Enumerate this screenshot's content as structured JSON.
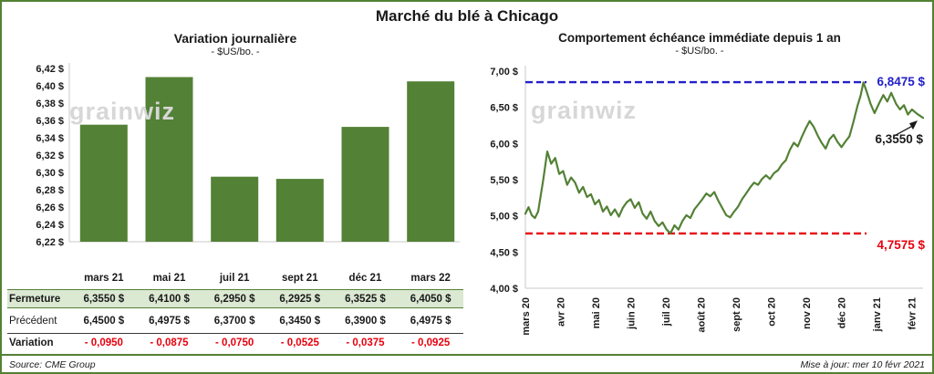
{
  "page": {
    "title": "Marché du blé à Chicago",
    "source": "Source: CME Group",
    "updated": "Mise à jour: mer 10 févr 2021"
  },
  "watermark": "grainwiz",
  "colors": {
    "green": "#538135",
    "light_green_row": "#dbe8d2",
    "blue": "#2320c8",
    "red": "#e8000d",
    "watermark_gray": "#d7d7d7"
  },
  "chart_data": [
    {
      "type": "bar",
      "title": "Variation journalière",
      "subtitle": "- $US/bo. -",
      "categories": [
        "mars 21",
        "mai 21",
        "juil 21",
        "sept 21",
        "déc 21",
        "mars 22"
      ],
      "values": [
        6.355,
        6.41,
        6.295,
        6.2925,
        6.3525,
        6.405
      ],
      "ylim": [
        6.22,
        6.42
      ],
      "yticks": [
        6.42,
        6.4,
        6.38,
        6.36,
        6.34,
        6.32,
        6.3,
        6.28,
        6.26,
        6.24,
        6.22
      ],
      "unit": "$",
      "bar_color": "#538135",
      "grid": false,
      "legend": false
    },
    {
      "type": "line",
      "title": "Comportement échéance immédiate depuis 1 an",
      "subtitle": "- $US/bo. -",
      "x_labels": [
        "mars 20",
        "avr 20",
        "mai 20",
        "juin 20",
        "juil 20",
        "août 20",
        "sept 20",
        "oct 20",
        "nov 20",
        "déc 20",
        "janv 21",
        "févr 21"
      ],
      "ylim": [
        4.0,
        7.0
      ],
      "yticks": [
        7.0,
        6.5,
        6.0,
        5.5,
        5.0,
        4.5,
        4.0
      ],
      "unit": "$",
      "line_color": "#538135",
      "grid": false,
      "legend": false,
      "annotations": {
        "high": {
          "value": 6.8475,
          "label": "6,8475 $",
          "color": "#2320c8",
          "style": "dashed"
        },
        "low": {
          "value": 4.7575,
          "label": "4,7575 $",
          "color": "#e8000d",
          "style": "dashed"
        },
        "last": {
          "value": 6.355,
          "label": "6,3550 $",
          "color": "#1a1a1a"
        }
      },
      "series": [
        {
          "name": "échéance immédiate",
          "points": [
            [
              0.0,
              5.03
            ],
            [
              0.008,
              5.12
            ],
            [
              0.016,
              5.01
            ],
            [
              0.024,
              4.97
            ],
            [
              0.032,
              5.06
            ],
            [
              0.045,
              5.5
            ],
            [
              0.055,
              5.89
            ],
            [
              0.065,
              5.72
            ],
            [
              0.075,
              5.8
            ],
            [
              0.085,
              5.58
            ],
            [
              0.095,
              5.62
            ],
            [
              0.105,
              5.43
            ],
            [
              0.115,
              5.53
            ],
            [
              0.125,
              5.46
            ],
            [
              0.135,
              5.32
            ],
            [
              0.145,
              5.4
            ],
            [
              0.155,
              5.26
            ],
            [
              0.165,
              5.3
            ],
            [
              0.175,
              5.16
            ],
            [
              0.185,
              5.22
            ],
            [
              0.195,
              5.06
            ],
            [
              0.205,
              5.13
            ],
            [
              0.215,
              5.01
            ],
            [
              0.225,
              5.09
            ],
            [
              0.235,
              4.99
            ],
            [
              0.245,
              5.11
            ],
            [
              0.255,
              5.19
            ],
            [
              0.265,
              5.23
            ],
            [
              0.275,
              5.11
            ],
            [
              0.285,
              5.19
            ],
            [
              0.295,
              5.03
            ],
            [
              0.305,
              4.96
            ],
            [
              0.315,
              5.06
            ],
            [
              0.325,
              4.93
            ],
            [
              0.335,
              4.86
            ],
            [
              0.345,
              4.91
            ],
            [
              0.355,
              4.81
            ],
            [
              0.365,
              4.76
            ],
            [
              0.375,
              4.87
            ],
            [
              0.385,
              4.81
            ],
            [
              0.395,
              4.93
            ],
            [
              0.405,
              5.01
            ],
            [
              0.415,
              4.97
            ],
            [
              0.425,
              5.09
            ],
            [
              0.435,
              5.16
            ],
            [
              0.445,
              5.23
            ],
            [
              0.455,
              5.31
            ],
            [
              0.465,
              5.27
            ],
            [
              0.475,
              5.33
            ],
            [
              0.485,
              5.21
            ],
            [
              0.495,
              5.11
            ],
            [
              0.505,
              5.01
            ],
            [
              0.515,
              4.98
            ],
            [
              0.525,
              5.06
            ],
            [
              0.535,
              5.13
            ],
            [
              0.545,
              5.23
            ],
            [
              0.555,
              5.31
            ],
            [
              0.565,
              5.39
            ],
            [
              0.575,
              5.46
            ],
            [
              0.585,
              5.43
            ],
            [
              0.595,
              5.51
            ],
            [
              0.605,
              5.56
            ],
            [
              0.615,
              5.51
            ],
            [
              0.625,
              5.59
            ],
            [
              0.635,
              5.63
            ],
            [
              0.645,
              5.71
            ],
            [
              0.655,
              5.77
            ],
            [
              0.665,
              5.91
            ],
            [
              0.675,
              6.01
            ],
            [
              0.685,
              5.96
            ],
            [
              0.695,
              6.09
            ],
            [
              0.705,
              6.21
            ],
            [
              0.715,
              6.31
            ],
            [
              0.725,
              6.23
            ],
            [
              0.735,
              6.11
            ],
            [
              0.745,
              6.01
            ],
            [
              0.755,
              5.93
            ],
            [
              0.765,
              6.06
            ],
            [
              0.775,
              6.12
            ],
            [
              0.785,
              6.02
            ],
            [
              0.795,
              5.95
            ],
            [
              0.805,
              6.03
            ],
            [
              0.815,
              6.1
            ],
            [
              0.825,
              6.3
            ],
            [
              0.835,
              6.52
            ],
            [
              0.843,
              6.66
            ],
            [
              0.85,
              6.845
            ],
            [
              0.858,
              6.72
            ],
            [
              0.868,
              6.55
            ],
            [
              0.878,
              6.42
            ],
            [
              0.89,
              6.56
            ],
            [
              0.9,
              6.67
            ],
            [
              0.91,
              6.58
            ],
            [
              0.92,
              6.7
            ],
            [
              0.932,
              6.55
            ],
            [
              0.942,
              6.47
            ],
            [
              0.952,
              6.53
            ],
            [
              0.962,
              6.4
            ],
            [
              0.972,
              6.47
            ],
            [
              0.985,
              6.41
            ],
            [
              1.0,
              6.355
            ]
          ]
        }
      ]
    }
  ],
  "table": {
    "rows": [
      {
        "label": "Fermeture",
        "values": [
          "6,3550 $",
          "6,4100 $",
          "6,2950 $",
          "6,2925 $",
          "6,3525 $",
          "6,4050 $"
        ]
      },
      {
        "label": "Précédent",
        "values": [
          "6,4500 $",
          "6,4975 $",
          "6,3700 $",
          "6,3450 $",
          "6,3900 $",
          "6,4975 $"
        ]
      },
      {
        "label": "Variation",
        "values": [
          "- 0,0950",
          "- 0,0875",
          "- 0,0750",
          "- 0,0525",
          "- 0,0375",
          "- 0,0925"
        ]
      }
    ]
  }
}
